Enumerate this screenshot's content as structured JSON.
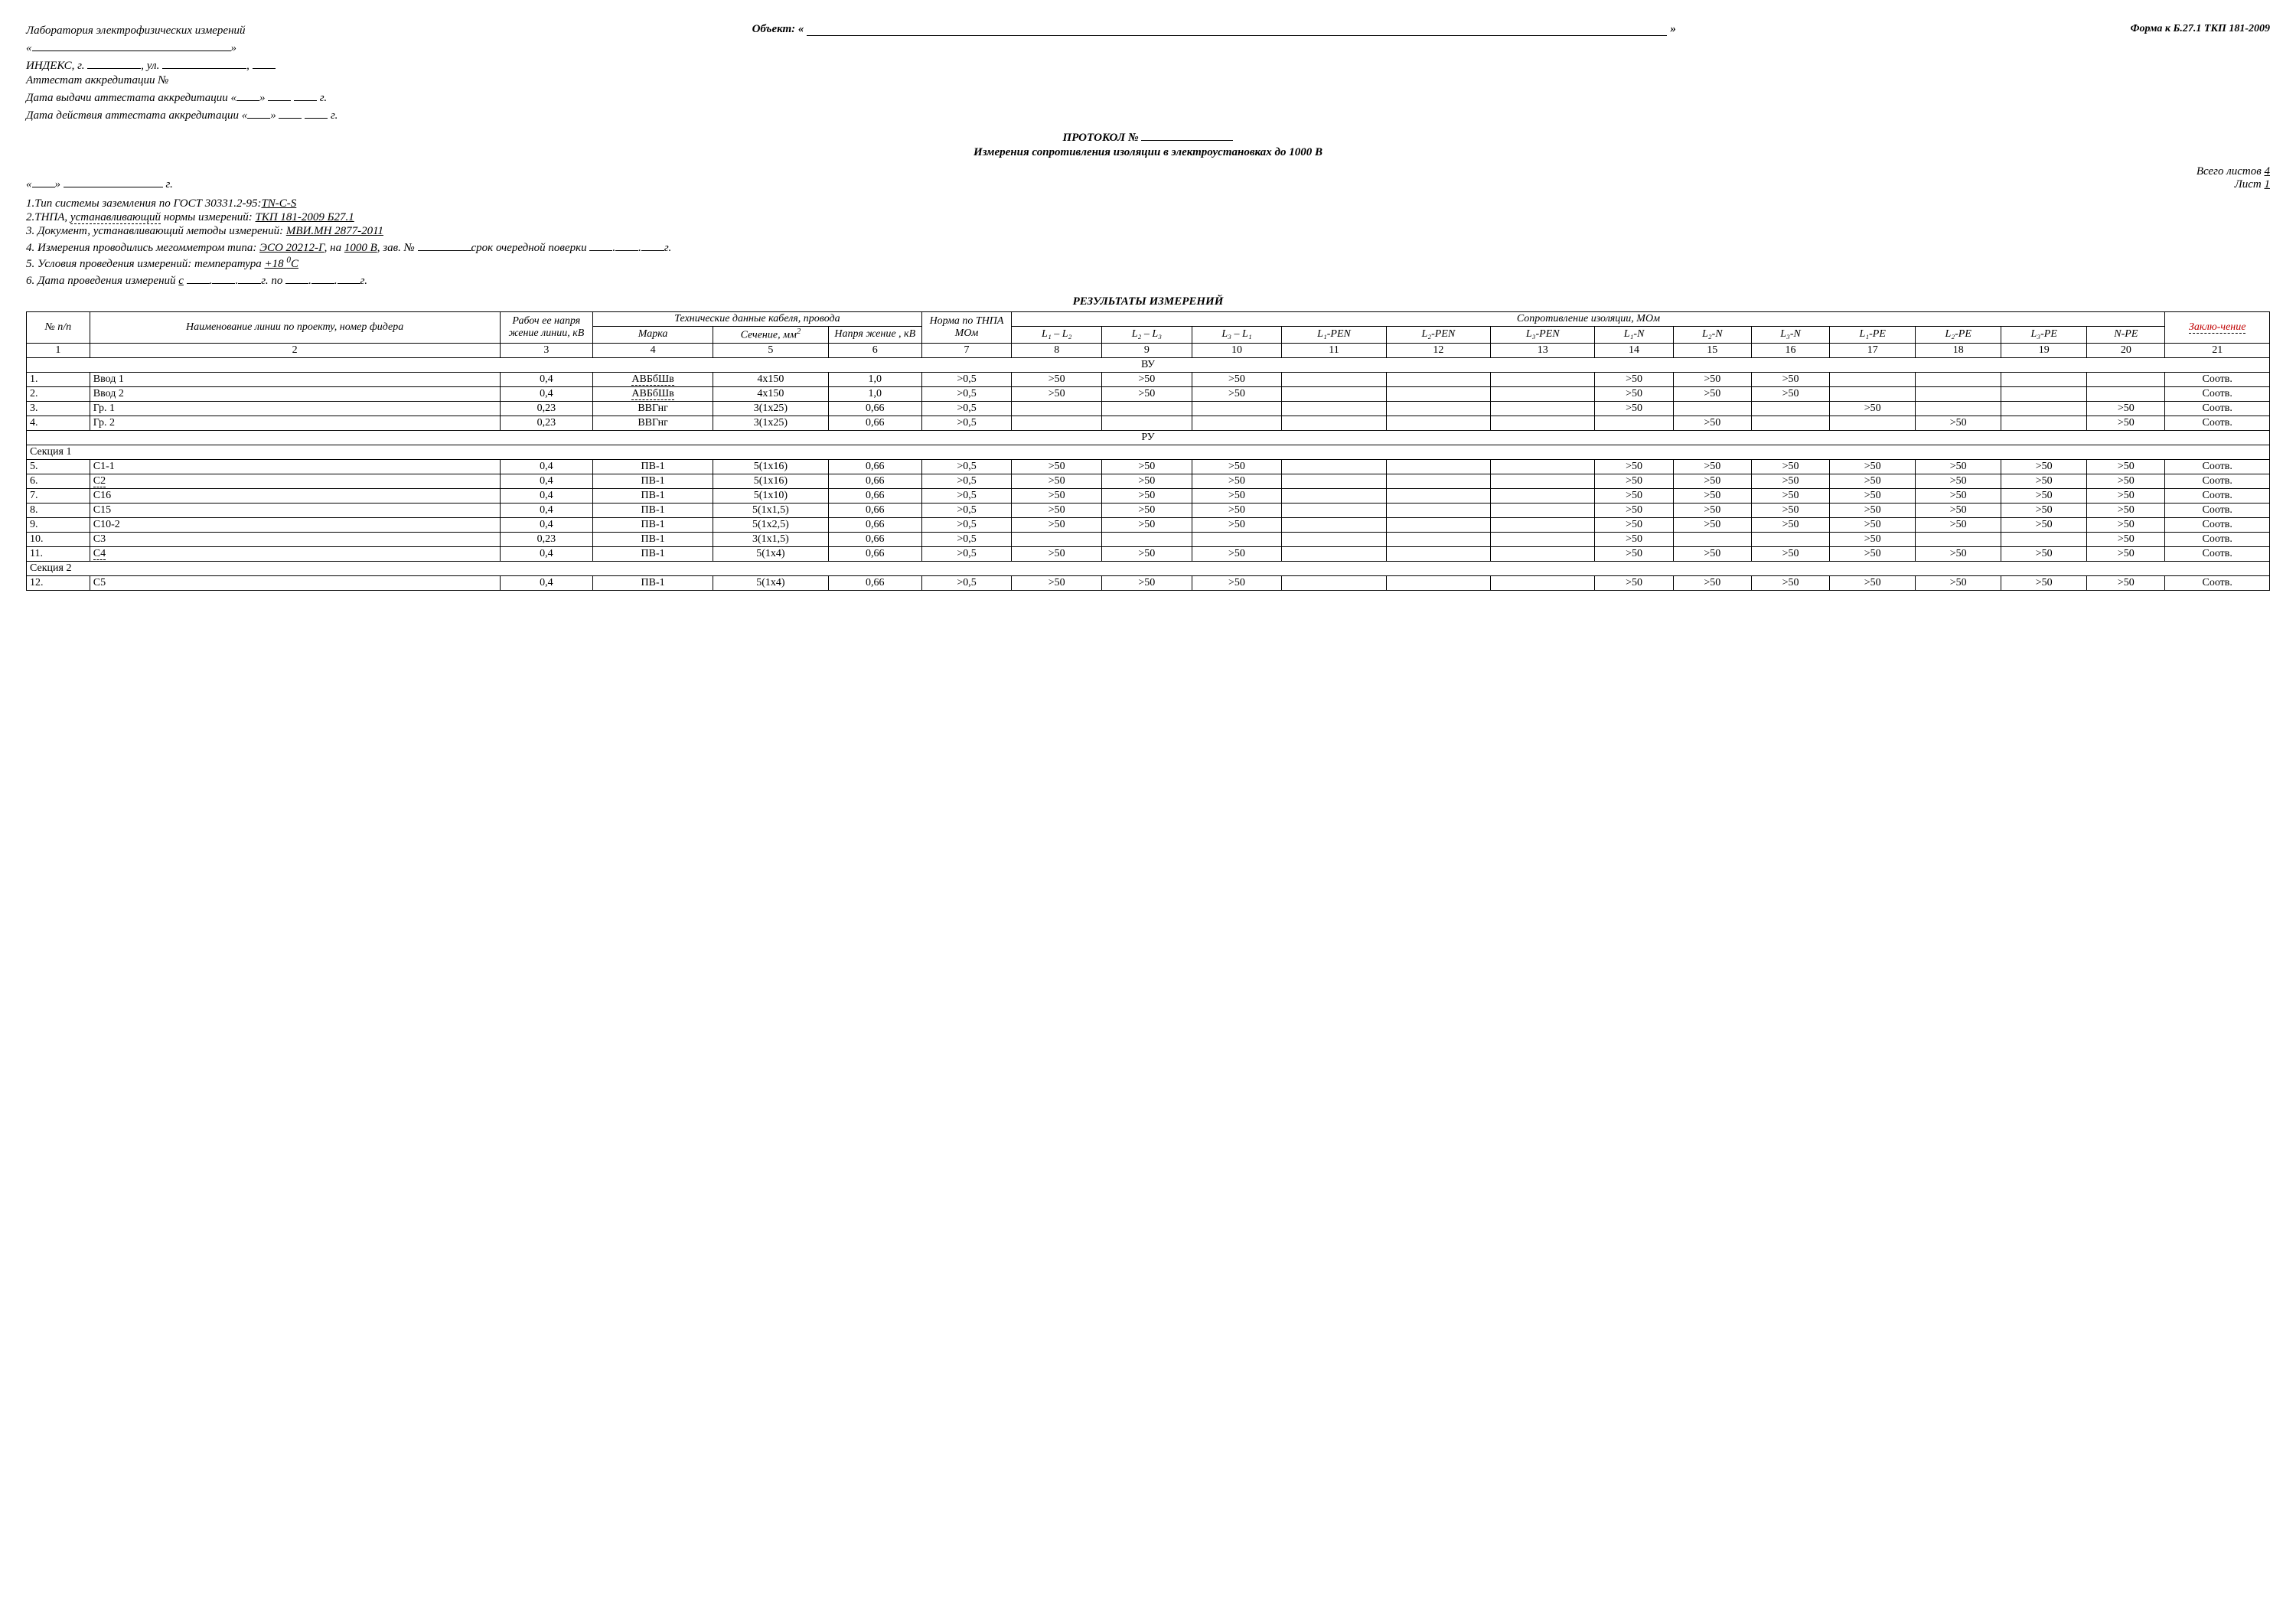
{
  "form_reference": "Форма к Б.27.1 ТКП 181-2009",
  "lab_title": "Лаборатория электрофизических измерений",
  "object_label": "Объект: «",
  "index_line": "ИНДЕКС, г.",
  "street_label": ", ул.",
  "accred_label": "Аттестат аккредитации №",
  "accred_issue": "Дата выдачи аттестата аккредитации «",
  "accred_valid": "Дата действия аттестата аккредитации «",
  "g_suffix": "г.",
  "close_quote": "»",
  "protocol_line": "ПРОТОКОЛ №",
  "protocol_subtitle": "Измерения сопротивления изоляции в электроустановках до 1000 В",
  "date_line_open": "«",
  "sheets_total_label": "Всего листов",
  "sheets_total_value": "4",
  "sheet_label": "Лист",
  "sheet_value": "1",
  "notes": {
    "n1_a": "1.Тип системы заземления по ГОСТ 30331.2-95:",
    "n1_b": "TN-C-S",
    "n2_a": "2.ТНПА,",
    "n2_b": "устанавливающий",
    "n2_c": "нормы измерений:",
    "n2_d": "ТКП 181-2009 Б27.1",
    "n3_a": "3. Документ, устанавливающий методы измерений:",
    "n3_b": "МВИ.МН 2877-2011",
    "n4_a": "4. Измерения проводились мегомметром типа:",
    "n4_b": "ЭСО 20212-Г",
    "n4_c": ", на",
    "n4_d": "1000  В",
    "n4_e": ", зав. №",
    "n4_f": "срок очередной поверки",
    "n5_a": "5. Условия проведения измерений: температура",
    "n5_b": "+18 ",
    "n5_c": "0",
    "n5_d": "С",
    "n6_a": "6. Дата проведения измерений",
    "n6_b": "с",
    "n6_c": "г. по",
    "n6_d": "г."
  },
  "results_title": "РЕЗУЛЬТАТЫ  ИЗМЕРЕНИЙ",
  "thead": {
    "col_nn": "№ п/п",
    "col_name": "Наименование линии по проекту, номер фидера",
    "col_volt": "Рабоч ее напря жение линии, кВ",
    "col_tech": "Технические данные кабеля, провода",
    "col_marka": "Марка",
    "col_section": "Сечение, мм",
    "col_section_sup": "2",
    "col_naprz": "Напря жение , кВ",
    "col_norm": "Норма по ТНПА МОм",
    "col_soprot": "Сопротивление изоляции, МОм",
    "s_l1l2": "L₁ – L₂",
    "s_l2l3": "L₂ – L₃",
    "s_l3l1": "L₃ – L₁",
    "s_l1pen": "L₁-PEN",
    "s_l2pen": "L₂-PEN",
    "s_l3pen": "L₃-PEN",
    "s_l1n": "L₁-N",
    "s_l2n": "L₂-N",
    "s_l3n": "L₃-N",
    "s_l1pe": "L₁-PE",
    "s_l2pe": "L₂-PE",
    "s_l3pe": "L₃-PE",
    "s_npe": "N-PE",
    "col_concl": "Заклю-чение"
  },
  "column_numbers": [
    "1",
    "2",
    "3",
    "4",
    "5",
    "6",
    "7",
    "8",
    "9",
    "10",
    "11",
    "12",
    "13",
    "14",
    "15",
    "16",
    "17",
    "18",
    "19",
    "20",
    "21"
  ],
  "sections": [
    {
      "title": "ВУ",
      "center": true,
      "rows": [
        {
          "n": "1.",
          "name": "Ввод 1",
          "v": "0,4",
          "marka": "АВБбШв",
          "marka_ud": true,
          "sect": "4х150",
          "nv": "1,0",
          "norm": ">0,5",
          "r": [
            ">50",
            ">50",
            ">50",
            "",
            "",
            "",
            ">50",
            ">50",
            ">50",
            "",
            "",
            "",
            ""
          ],
          "concl": "Соотв."
        },
        {
          "n": "2.",
          "name": "Ввод 2",
          "v": "0,4",
          "marka": "АВБбШв",
          "marka_ud": true,
          "sect": "4х150",
          "nv": "1,0",
          "norm": ">0,5",
          "r": [
            ">50",
            ">50",
            ">50",
            "",
            "",
            "",
            ">50",
            ">50",
            ">50",
            "",
            "",
            "",
            ""
          ],
          "concl": "Соотв."
        },
        {
          "n": "3.",
          "name": "Гр. 1",
          "v": "0,23",
          "marka": "ВВГнг",
          "sect": "3(1х25)",
          "nv": "0,66",
          "norm": ">0,5",
          "r": [
            "",
            "",
            "",
            "",
            "",
            "",
            ">50",
            "",
            "",
            ">50",
            "",
            "",
            ">50"
          ],
          "concl": "Соотв."
        },
        {
          "n": "4.",
          "name": "Гр. 2",
          "v": "0,23",
          "marka": "ВВГнг",
          "sect": "3(1х25)",
          "nv": "0,66",
          "norm": ">0,5",
          "r": [
            "",
            "",
            "",
            "",
            "",
            "",
            "",
            ">50",
            "",
            "",
            ">50",
            "",
            ">50"
          ],
          "concl": "Соотв."
        }
      ]
    },
    {
      "title": "РУ",
      "center": true,
      "rows": []
    },
    {
      "title": "Секция 1",
      "center": false,
      "rows": [
        {
          "n": "5.",
          "name": "С1-1",
          "v": "0,4",
          "marka": "ПВ-1",
          "sect": "5(1х16)",
          "nv": "0,66",
          "norm": ">0,5",
          "r": [
            ">50",
            ">50",
            ">50",
            "",
            "",
            "",
            ">50",
            ">50",
            ">50",
            ">50",
            ">50",
            ">50",
            ">50"
          ],
          "concl": "Соотв."
        },
        {
          "n": "6.",
          "name": "С2",
          "name_ud": true,
          "v": "0,4",
          "marka": "ПВ-1",
          "sect": "5(1х16)",
          "nv": "0,66",
          "norm": ">0,5",
          "r": [
            ">50",
            ">50",
            ">50",
            "",
            "",
            "",
            ">50",
            ">50",
            ">50",
            ">50",
            ">50",
            ">50",
            ">50"
          ],
          "concl": "Соотв."
        },
        {
          "n": "7.",
          "name": "С16",
          "v": "0,4",
          "marka": "ПВ-1",
          "sect": "5(1х10)",
          "nv": "0,66",
          "norm": ">0,5",
          "r": [
            ">50",
            ">50",
            ">50",
            "",
            "",
            "",
            ">50",
            ">50",
            ">50",
            ">50",
            ">50",
            ">50",
            ">50"
          ],
          "concl": "Соотв."
        },
        {
          "n": "8.",
          "name": "С15",
          "v": "0,4",
          "marka": "ПВ-1",
          "sect": "5(1х1,5)",
          "nv": "0,66",
          "norm": ">0,5",
          "r": [
            ">50",
            ">50",
            ">50",
            "",
            "",
            "",
            ">50",
            ">50",
            ">50",
            ">50",
            ">50",
            ">50",
            ">50"
          ],
          "concl": "Соотв."
        },
        {
          "n": "9.",
          "name": "С10-2",
          "v": "0,4",
          "marka": "ПВ-1",
          "sect": "5(1х2,5)",
          "nv": "0,66",
          "norm": ">0,5",
          "r": [
            ">50",
            ">50",
            ">50",
            "",
            "",
            "",
            ">50",
            ">50",
            ">50",
            ">50",
            ">50",
            ">50",
            ">50"
          ],
          "concl": "Соотв."
        },
        {
          "n": "10.",
          "name": "С3",
          "v": "0,23",
          "marka": "ПВ-1",
          "sect": "3(1х1,5)",
          "nv": "0,66",
          "norm": ">0,5",
          "r": [
            "",
            "",
            "",
            "",
            "",
            "",
            ">50",
            "",
            "",
            ">50",
            "",
            "",
            ">50"
          ],
          "concl": "Соотв."
        },
        {
          "n": "11.",
          "name": "С4",
          "name_ud": true,
          "v": "0,4",
          "marka": "ПВ-1",
          "sect": "5(1х4)",
          "nv": "0,66",
          "norm": ">0,5",
          "r": [
            ">50",
            ">50",
            ">50",
            "",
            "",
            "",
            ">50",
            ">50",
            ">50",
            ">50",
            ">50",
            ">50",
            ">50"
          ],
          "concl": "Соотв."
        }
      ]
    },
    {
      "title": "Секция 2",
      "center": false,
      "rows": [
        {
          "n": "12.",
          "name": "С5",
          "v": "0,4",
          "marka": "ПВ-1",
          "sect": "5(1х4)",
          "nv": "0,66",
          "norm": ">0,5",
          "r": [
            ">50",
            ">50",
            ">50",
            "",
            "",
            "",
            ">50",
            ">50",
            ">50",
            ">50",
            ">50",
            ">50",
            ">50"
          ],
          "concl": "Соотв."
        }
      ]
    }
  ],
  "col_widths": [
    "34px",
    "220px",
    "50px",
    "58px",
    "62px",
    "50px",
    "46px",
    "46px",
    "46px",
    "46px",
    "56px",
    "56px",
    "56px",
    "42px",
    "42px",
    "42px",
    "46px",
    "46px",
    "46px",
    "42px",
    "56px"
  ]
}
